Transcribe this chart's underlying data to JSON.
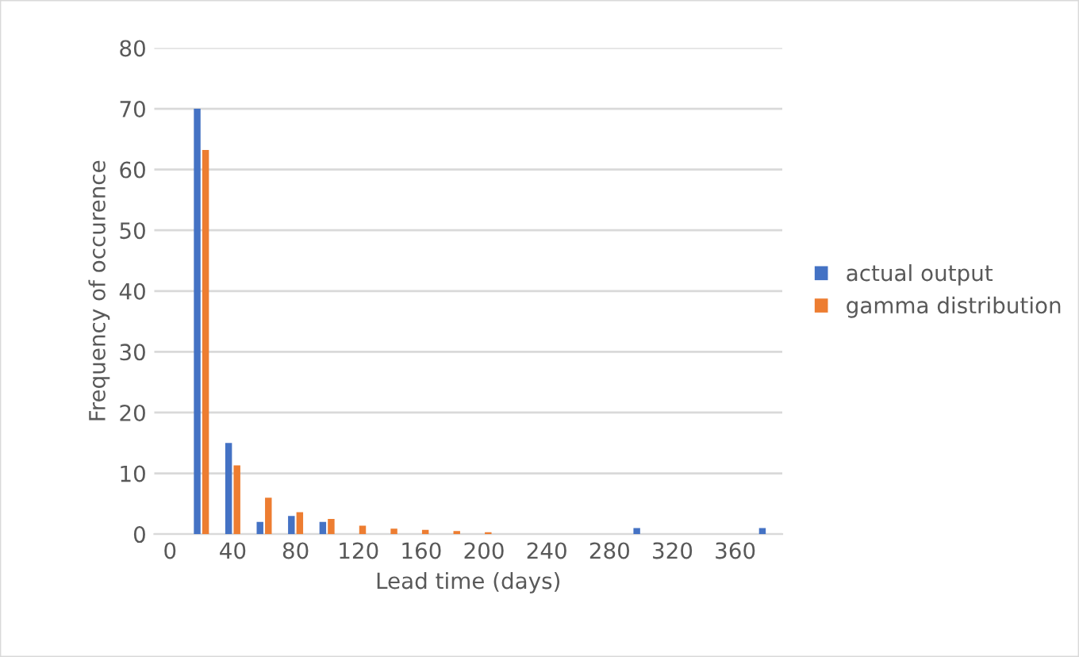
{
  "chart_data": {
    "type": "bar",
    "xlabel": "Lead time (days)",
    "ylabel": "Frequency of occurence",
    "categories": [
      "0",
      null,
      "40",
      null,
      "80",
      null,
      "120",
      null,
      "160",
      null,
      "200",
      null,
      "240",
      null,
      "280",
      null,
      "320",
      null,
      "360",
      null
    ],
    "series": [
      {
        "name": "actual output",
        "color": "#4472c4",
        "values": [
          0,
          70,
          15,
          2,
          3,
          2,
          0,
          0,
          0,
          0,
          0,
          0,
          0,
          0,
          0,
          1,
          0,
          0,
          0,
          1
        ]
      },
      {
        "name": "gamma distribution",
        "color": "#ed7d31",
        "values": [
          0,
          63.2,
          11.3,
          6.0,
          3.6,
          2.5,
          1.4,
          0.9,
          0.7,
          0.5,
          0.3,
          0,
          0,
          0,
          0,
          0,
          0,
          0,
          0,
          0
        ]
      }
    ],
    "ylim": [
      0,
      80
    ],
    "yticks": [
      0,
      10,
      20,
      30,
      40,
      50,
      60,
      70,
      80
    ],
    "grid": "y",
    "legend": "right"
  }
}
